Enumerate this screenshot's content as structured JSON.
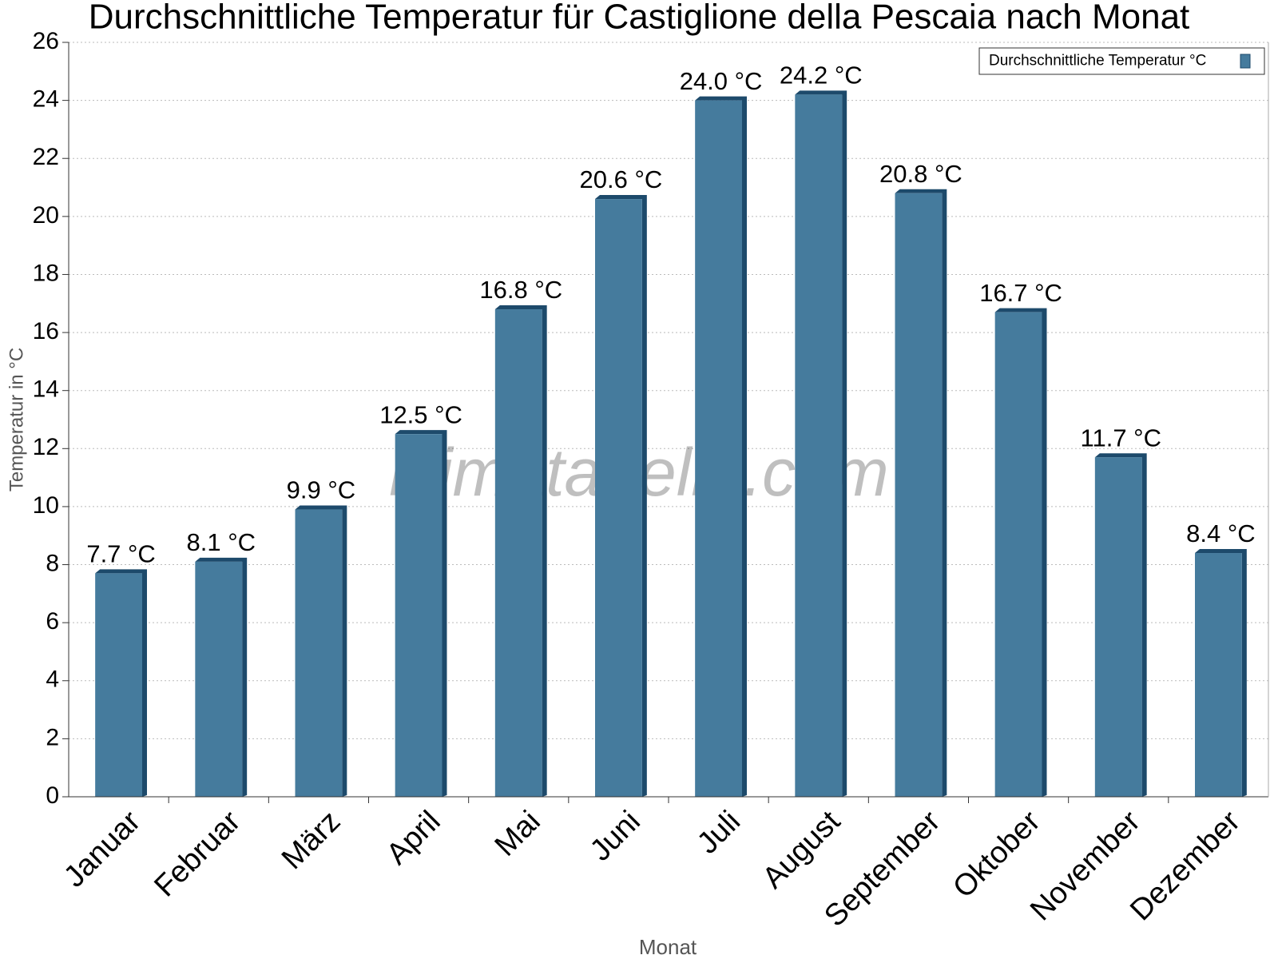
{
  "chart_data": {
    "type": "bar",
    "title": "Durchschnittliche Temperatur für Castiglione della Pescaia nach Monat",
    "x_label": "Monat",
    "y_label": "Temperatur in °C",
    "watermark": "klimatabelle.com",
    "categories": [
      "Januar",
      "Februar",
      "März",
      "April",
      "Mai",
      "Juni",
      "Juli",
      "August",
      "September",
      "Oktober",
      "November",
      "Dezember"
    ],
    "series": [
      {
        "name": "Durchschnittliche Temperatur °C",
        "color": "#457b9d",
        "values": [
          7.7,
          8.1,
          9.9,
          12.5,
          16.8,
          20.6,
          24.0,
          24.2,
          20.8,
          16.7,
          11.7,
          8.4
        ],
        "value_labels": [
          "7.7 °C",
          "8.1 °C",
          "9.9 °C",
          "12.5 °C",
          "16.8 °C",
          "20.6 °C",
          "24.0 °C",
          "24.2 °C",
          "20.8 °C",
          "16.7 °C",
          "11.7 °C",
          "8.4 °C"
        ]
      }
    ],
    "ylim": [
      0,
      26
    ],
    "yticks": [
      0,
      2,
      4,
      6,
      8,
      10,
      12,
      14,
      16,
      18,
      20,
      22,
      24,
      26
    ],
    "grid": true,
    "legend": "top-right"
  }
}
